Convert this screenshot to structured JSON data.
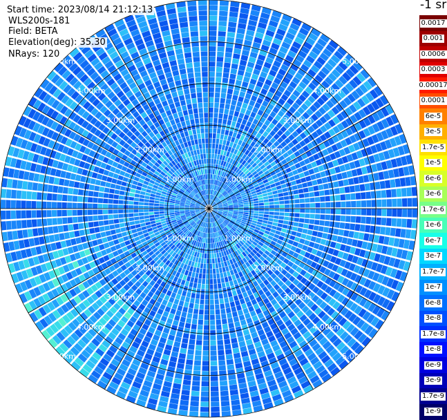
{
  "info": {
    "start_time": "Start time: 2023/08/14 21:12:13",
    "instrument": "WLS200s-181",
    "field": "Field: BETA",
    "elevation": "Elevation(deg): 35.30",
    "nrays": "NRays: 120"
  },
  "colorbar": {
    "unit": "-1 sr",
    "entries": [
      {
        "label": "0.0017",
        "color": "#7a0000"
      },
      {
        "label": "0.001",
        "color": "#9e0000"
      },
      {
        "label": "0.0006",
        "color": "#c00000"
      },
      {
        "label": "0.0003",
        "color": "#e00000"
      },
      {
        "label": "0.00017",
        "color": "#ff1a00"
      },
      {
        "label": "0.0001",
        "color": "#ff4d00"
      },
      {
        "label": "6e-5",
        "color": "#ff8000"
      },
      {
        "label": "3e-5",
        "color": "#ffb000"
      },
      {
        "label": "1.7e-5",
        "color": "#ffe000"
      },
      {
        "label": "1e-5",
        "color": "#ffff00"
      },
      {
        "label": "6e-6",
        "color": "#d8ff28"
      },
      {
        "label": "3e-6",
        "color": "#a8ff58"
      },
      {
        "label": "1.7e-6",
        "color": "#78ff88"
      },
      {
        "label": "1e-6",
        "color": "#48ffb8"
      },
      {
        "label": "6e-7",
        "color": "#18ffe8"
      },
      {
        "label": "3e-7",
        "color": "#00d8ff"
      },
      {
        "label": "1.7e-7",
        "color": "#00b0ff"
      },
      {
        "label": "1e-7",
        "color": "#0090ff"
      },
      {
        "label": "6e-8",
        "color": "#0070ff"
      },
      {
        "label": "3e-8",
        "color": "#0050ff"
      },
      {
        "label": "1.7e-8",
        "color": "#0030ff"
      },
      {
        "label": "1e-8",
        "color": "#0010ff"
      },
      {
        "label": "6e-9",
        "color": "#0000e0"
      },
      {
        "label": "3e-9",
        "color": "#0000b8"
      },
      {
        "label": "1.7e-9",
        "color": "#000090"
      },
      {
        "label": "1e-9",
        "color": "#000068"
      }
    ]
  },
  "chart_data": {
    "type": "heatmap",
    "projection": "polar",
    "field": "BETA",
    "n_rays": 120,
    "max_range_km": 5.0,
    "range_rings_km": [
      1,
      2,
      3,
      4,
      5
    ],
    "range_ring_labels": [
      "1.00km",
      "2.00km",
      "3.00km",
      "4.00km",
      "5.00km"
    ],
    "azimuth_lines_deg": [
      0,
      30,
      60,
      90,
      120,
      150,
      180,
      210,
      240,
      270,
      300,
      330
    ],
    "dominant_value_range": [
      1e-08,
      3e-07
    ],
    "legend": "right"
  }
}
